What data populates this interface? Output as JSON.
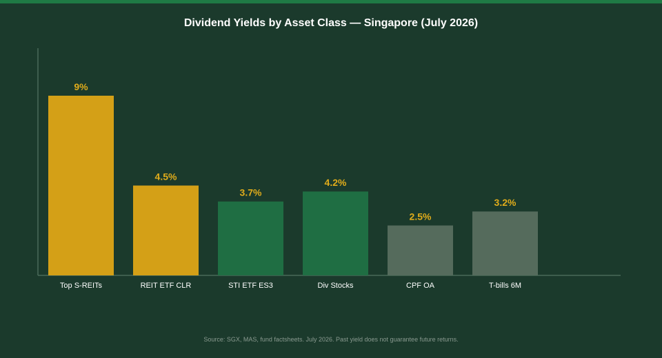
{
  "colors": {
    "background": "#1b3a2c",
    "top_strip": "#1f7a45",
    "gold": "#d4a017",
    "green": "#1f6e43",
    "grey": "#556b5c",
    "axis": "#4a6b59",
    "label_gold": "#e0ac1b"
  },
  "chart_data": {
    "type": "bar",
    "title": "Dividend Yields by Asset Class — Singapore (July 2026)",
    "xlabel": "",
    "ylabel": "",
    "unit": "%",
    "ylim": [
      0,
      10
    ],
    "grid": false,
    "categories": [
      "Top S-REITs",
      "REIT ETF CLR",
      "STI ETF ES3",
      "Div Stocks",
      "CPF OA",
      "T-bills 6M"
    ],
    "values": [
      9,
      4.5,
      3.7,
      4.2,
      2.5,
      3.2
    ],
    "value_labels": [
      "9%",
      "4.5%",
      "3.7%",
      "4.2%",
      "2.5%",
      "3.2%"
    ],
    "bar_colors": [
      "#d4a017",
      "#d4a017",
      "#1f6e43",
      "#1f6e43",
      "#556b5c",
      "#556b5c"
    ]
  },
  "footer": {
    "source": "Source: SGX, MAS, fund factsheets. July 2026. Past yield does not guarantee future returns."
  }
}
